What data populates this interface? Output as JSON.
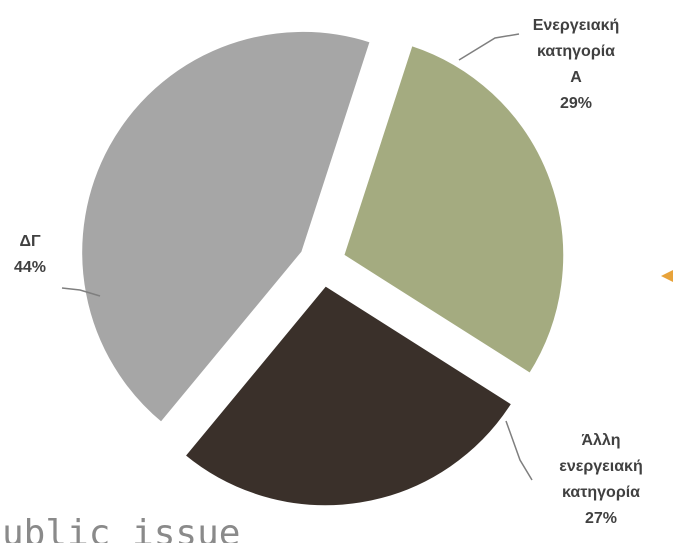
{
  "chart_data": {
    "type": "pie",
    "title": "",
    "slices": [
      {
        "label": [
          "Ενεργειακή",
          "κατηγορία",
          "Α"
        ],
        "value": 29,
        "value_label": "29%",
        "color": "#a4ab80"
      },
      {
        "label": [
          "Άλλη",
          "ενεργειακή",
          "κατηγορία"
        ],
        "value": 27,
        "value_label": "27%",
        "color": "#3a302a"
      },
      {
        "label": [
          "ΔΓ"
        ],
        "value": 44,
        "value_label": "44%",
        "color": "#a6a6a6"
      }
    ],
    "exploded": true,
    "start_angle_deg_clockwise_from_top": 18,
    "leader_lines": true
  },
  "background_text": "ublic issue",
  "background_marker_color": "#e8a33a"
}
